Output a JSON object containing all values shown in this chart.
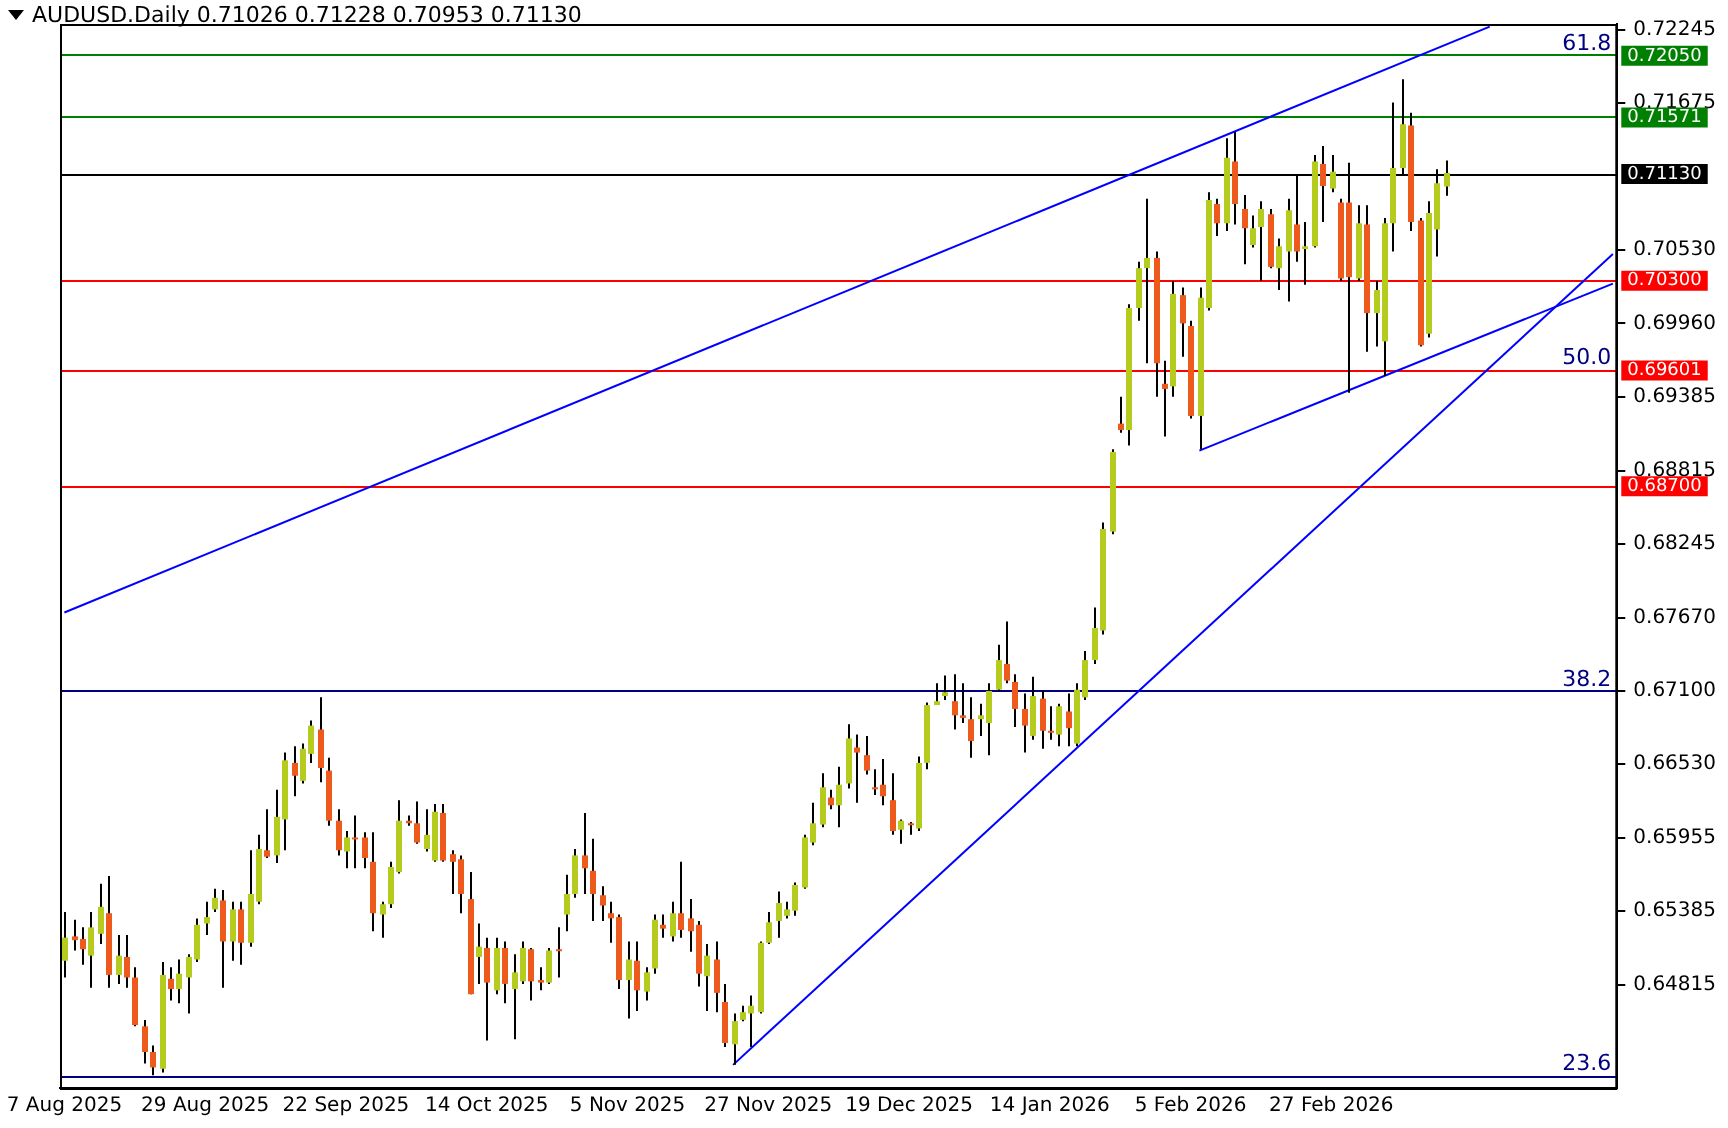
{
  "chart_data": {
    "type": "candlestick",
    "title": "AUDUSD.Daily 0.71026 0.71228 0.70953 0.71130",
    "categories": [
      "7 Aug 2025",
      null,
      null,
      null,
      null,
      null,
      null,
      null,
      null,
      null,
      null,
      null,
      null,
      null,
      null,
      null,
      "29 Aug 2025",
      null,
      null,
      null,
      null,
      null,
      null,
      null,
      null,
      null,
      null,
      null,
      null,
      null,
      null,
      null,
      "22 Sep 2025",
      null,
      null,
      null,
      null,
      null,
      null,
      null,
      null,
      null,
      null,
      null,
      null,
      null,
      null,
      null,
      "14 Oct 2025",
      null,
      null,
      null,
      null,
      null,
      null,
      null,
      null,
      null,
      null,
      null,
      null,
      null,
      null,
      null,
      "5 Nov 2025",
      null,
      null,
      null,
      null,
      null,
      null,
      null,
      null,
      null,
      null,
      null,
      null,
      null,
      null,
      null,
      "27 Nov 2025",
      null,
      null,
      null,
      null,
      null,
      null,
      null,
      null,
      null,
      null,
      null,
      null,
      null,
      null,
      null,
      "19 Dec 2025",
      null,
      null,
      null,
      null,
      null,
      null,
      null,
      null,
      null,
      null,
      null,
      null,
      null,
      null,
      null,
      "14 Jan 2026",
      null,
      null,
      null,
      null,
      null,
      null,
      null,
      null,
      null,
      null,
      null,
      null,
      null,
      null,
      null,
      "5 Feb 2026",
      null,
      null,
      null,
      null,
      null,
      null,
      null,
      null,
      null,
      null,
      null,
      null,
      null,
      null,
      null,
      "27 Feb 2026",
      null,
      null,
      null,
      null,
      null,
      null,
      null,
      null,
      null,
      null,
      null,
      null,
      null,
      null,
      null,
      null,
      null,
      null,
      null,
      null,
      null,
      null,
      null,
      null,
      null,
      null,
      null,
      null,
      null,
      null,
      null,
      null
    ],
    "ohlc": [
      [
        0.65,
        0.6538,
        0.6487,
        0.6518
      ],
      [
        0.6519,
        0.6532,
        0.6508,
        0.6516
      ],
      [
        0.6517,
        0.6526,
        0.6497,
        0.6509
      ],
      [
        0.6504,
        0.6538,
        0.6479,
        0.6526
      ],
      [
        0.6521,
        0.656,
        0.6513,
        0.6542
      ],
      [
        0.6537,
        0.6566,
        0.6479,
        0.6489
      ],
      [
        0.6489,
        0.652,
        0.6482,
        0.6504
      ],
      [
        0.6503,
        0.652,
        0.6479,
        0.6487
      ],
      [
        0.6487,
        0.6495,
        0.6449,
        0.645
      ],
      [
        0.6449,
        0.6454,
        0.642,
        0.6429
      ],
      [
        0.6429,
        0.6434,
        0.6411,
        0.6417
      ],
      [
        0.6416,
        0.6499,
        0.6413,
        0.6489
      ],
      [
        0.6486,
        0.6495,
        0.6469,
        0.6478
      ],
      [
        0.6478,
        0.6501,
        0.6467,
        0.649
      ],
      [
        0.6487,
        0.6505,
        0.6459,
        0.6503
      ],
      [
        0.6501,
        0.6533,
        0.6499,
        0.6528
      ],
      [
        0.6529,
        0.6546,
        0.652,
        0.6534
      ],
      [
        0.654,
        0.6556,
        0.6538,
        0.6549
      ],
      [
        0.6547,
        0.6555,
        0.6479,
        0.6515
      ],
      [
        0.6515,
        0.6546,
        0.65,
        0.654
      ],
      [
        0.654,
        0.6546,
        0.6497,
        0.6514
      ],
      [
        0.6514,
        0.6586,
        0.6511,
        0.6552
      ],
      [
        0.6546,
        0.6598,
        0.6544,
        0.6587
      ],
      [
        0.6586,
        0.6618,
        0.658,
        0.6581
      ],
      [
        0.6582,
        0.6633,
        0.6576,
        0.6612
      ],
      [
        0.661,
        0.6662,
        0.6586,
        0.6656
      ],
      [
        0.6654,
        0.6667,
        0.6628,
        0.6644
      ],
      [
        0.664,
        0.6669,
        0.6638,
        0.6665
      ],
      [
        0.6661,
        0.6687,
        0.6654,
        0.6683
      ],
      [
        0.668,
        0.6705,
        0.6639,
        0.665
      ],
      [
        0.6648,
        0.6658,
        0.6605,
        0.6609
      ],
      [
        0.6609,
        0.6618,
        0.6582,
        0.6586
      ],
      [
        0.6585,
        0.6601,
        0.6572,
        0.6596
      ],
      [
        0.6596,
        0.6613,
        0.6572,
        0.6595
      ],
      [
        0.6596,
        0.66,
        0.6572,
        0.658
      ],
      [
        0.6577,
        0.66,
        0.6523,
        0.6537
      ],
      [
        0.6536,
        0.6546,
        0.6518,
        0.6544
      ],
      [
        0.6544,
        0.6577,
        0.6541,
        0.6573
      ],
      [
        0.6569,
        0.6625,
        0.6568,
        0.6609
      ],
      [
        0.6609,
        0.6613,
        0.6605,
        0.6607
      ],
      [
        0.6607,
        0.6624,
        0.6591,
        0.6592
      ],
      [
        0.6587,
        0.6618,
        0.6585,
        0.6598
      ],
      [
        0.6578,
        0.6622,
        0.6577,
        0.6616
      ],
      [
        0.6615,
        0.6622,
        0.6577,
        0.6578
      ],
      [
        0.6583,
        0.6586,
        0.6552,
        0.6577
      ],
      [
        0.6579,
        0.6582,
        0.6537,
        0.6552
      ],
      [
        0.6548,
        0.6569,
        0.6474,
        0.6474
      ],
      [
        0.6503,
        0.6529,
        0.6482,
        0.6511
      ],
      [
        0.651,
        0.6518,
        0.6438,
        0.6483
      ],
      [
        0.6477,
        0.6518,
        0.6474,
        0.651
      ],
      [
        0.651,
        0.6515,
        0.6467,
        0.6482
      ],
      [
        0.6478,
        0.6505,
        0.6439,
        0.6491
      ],
      [
        0.6484,
        0.6515,
        0.6482,
        0.651
      ],
      [
        0.6509,
        0.651,
        0.6469,
        0.6484
      ],
      [
        0.6485,
        0.6495,
        0.6477,
        0.6483
      ],
      [
        0.6483,
        0.651,
        0.6482,
        0.6508
      ],
      [
        0.6509,
        0.6526,
        0.6487,
        0.6508
      ],
      [
        0.6536,
        0.6567,
        0.6523,
        0.6552
      ],
      [
        0.6552,
        0.6587,
        0.6549,
        0.6582
      ],
      [
        0.6582,
        0.6615,
        0.6552,
        0.6572
      ],
      [
        0.657,
        0.6595,
        0.6531,
        0.6552
      ],
      [
        0.6551,
        0.6558,
        0.6531,
        0.6543
      ],
      [
        0.6537,
        0.6546,
        0.6514,
        0.6533
      ],
      [
        0.6534,
        0.6536,
        0.6478,
        0.6485
      ],
      [
        0.6485,
        0.6515,
        0.6455,
        0.6501
      ],
      [
        0.65,
        0.6515,
        0.6461,
        0.6477
      ],
      [
        0.6476,
        0.6495,
        0.6469,
        0.6491
      ],
      [
        0.6494,
        0.6536,
        0.649,
        0.6532
      ],
      [
        0.6528,
        0.6536,
        0.6518,
        0.6525
      ],
      [
        0.6519,
        0.6546,
        0.6515,
        0.6537
      ],
      [
        0.6537,
        0.6577,
        0.6518,
        0.6524
      ],
      [
        0.6533,
        0.6548,
        0.6507,
        0.6523
      ],
      [
        0.6528,
        0.6531,
        0.648,
        0.649
      ],
      [
        0.6488,
        0.6513,
        0.6461,
        0.6504
      ],
      [
        0.6501,
        0.6515,
        0.646,
        0.6475
      ],
      [
        0.6468,
        0.6482,
        0.6433,
        0.6436
      ],
      [
        0.6435,
        0.6459,
        0.6419,
        0.6453
      ],
      [
        0.6454,
        0.6465,
        0.6453,
        0.646
      ],
      [
        0.6459,
        0.6473,
        0.6433,
        0.6465
      ],
      [
        0.646,
        0.6515,
        0.6459,
        0.6514
      ],
      [
        0.6514,
        0.6538,
        0.6513,
        0.653
      ],
      [
        0.6531,
        0.6554,
        0.6518,
        0.6545
      ],
      [
        0.6535,
        0.6546,
        0.6533,
        0.654
      ],
      [
        0.6539,
        0.6561,
        0.6535,
        0.6559
      ],
      [
        0.6557,
        0.6598,
        0.6556,
        0.6596
      ],
      [
        0.6592,
        0.6623,
        0.659,
        0.6607
      ],
      [
        0.6606,
        0.6646,
        0.6604,
        0.6635
      ],
      [
        0.6627,
        0.6633,
        0.6618,
        0.6621
      ],
      [
        0.6621,
        0.6651,
        0.6604,
        0.6637
      ],
      [
        0.6638,
        0.6684,
        0.6634,
        0.6673
      ],
      [
        0.6666,
        0.6676,
        0.6623,
        0.6662
      ],
      [
        0.666,
        0.6675,
        0.6645,
        0.6648
      ],
      [
        0.6635,
        0.6649,
        0.6629,
        0.6634
      ],
      [
        0.6637,
        0.6657,
        0.6621,
        0.6628
      ],
      [
        0.6625,
        0.6646,
        0.6598,
        0.6601
      ],
      [
        0.6602,
        0.661,
        0.6591,
        0.6609
      ],
      [
        0.6607,
        0.6608,
        0.6598,
        0.6606
      ],
      [
        0.6603,
        0.6659,
        0.6601,
        0.6654
      ],
      [
        0.6654,
        0.6701,
        0.6649,
        0.6699
      ],
      [
        0.6699,
        0.6716,
        0.6699,
        0.6702
      ],
      [
        0.6706,
        0.6722,
        0.6703,
        0.6709
      ],
      [
        0.6702,
        0.6723,
        0.668,
        0.6691
      ],
      [
        0.6691,
        0.6716,
        0.6685,
        0.6689
      ],
      [
        0.6688,
        0.6705,
        0.6658,
        0.6671
      ],
      [
        0.6688,
        0.67,
        0.6675,
        0.6691
      ],
      [
        0.6685,
        0.6716,
        0.666,
        0.671
      ],
      [
        0.6711,
        0.6746,
        0.671,
        0.6734
      ],
      [
        0.6731,
        0.6764,
        0.6716,
        0.6718
      ],
      [
        0.6717,
        0.6723,
        0.6682,
        0.6696
      ],
      [
        0.6696,
        0.6708,
        0.6662,
        0.6683
      ],
      [
        0.6675,
        0.6721,
        0.6672,
        0.6706
      ],
      [
        0.6704,
        0.671,
        0.6665,
        0.6679
      ],
      [
        0.6679,
        0.6698,
        0.6672,
        0.6678
      ],
      [
        0.6676,
        0.67,
        0.6667,
        0.6698
      ],
      [
        0.6694,
        0.6708,
        0.6667,
        0.6681
      ],
      [
        0.6669,
        0.6716,
        0.6667,
        0.6711
      ],
      [
        0.6705,
        0.6741,
        0.6703,
        0.6734
      ],
      [
        0.6734,
        0.6775,
        0.6731,
        0.6759
      ],
      [
        0.6757,
        0.6841,
        0.6754,
        0.6836
      ],
      [
        0.6834,
        0.6898,
        0.6832,
        0.6896
      ],
      [
        0.6918,
        0.6939,
        0.6911,
        0.6913
      ],
      [
        0.6913,
        0.7011,
        0.6901,
        0.7008
      ],
      [
        0.7008,
        0.7044,
        0.6998,
        0.7039
      ],
      [
        0.7039,
        0.7093,
        0.6965,
        0.7047
      ],
      [
        0.7047,
        0.7052,
        0.6939,
        0.6965
      ],
      [
        0.6949,
        0.6967,
        0.6908,
        0.6945
      ],
      [
        0.6947,
        0.7029,
        0.6939,
        0.7019
      ],
      [
        0.7018,
        0.7024,
        0.697,
        0.6996
      ],
      [
        0.6994,
        0.6998,
        0.6922,
        0.6924
      ],
      [
        0.6924,
        0.7024,
        0.6898,
        0.7016
      ],
      [
        0.7008,
        0.7098,
        0.7006,
        0.7092
      ],
      [
        0.7089,
        0.7093,
        0.7064,
        0.7074
      ],
      [
        0.7074,
        0.714,
        0.7068,
        0.7125
      ],
      [
        0.7122,
        0.7145,
        0.7073,
        0.7089
      ],
      [
        0.7085,
        0.7096,
        0.7042,
        0.707
      ],
      [
        0.7057,
        0.708,
        0.7055,
        0.707
      ],
      [
        0.7071,
        0.7091,
        0.7029,
        0.7085
      ],
      [
        0.7081,
        0.7085,
        0.7039,
        0.704
      ],
      [
        0.7039,
        0.7062,
        0.7022,
        0.7056
      ],
      [
        0.7052,
        0.7093,
        0.7013,
        0.7084
      ],
      [
        0.7073,
        0.7111,
        0.7044,
        0.7052
      ],
      [
        0.7054,
        0.7075,
        0.7026,
        0.7056
      ],
      [
        0.7056,
        0.7127,
        0.7055,
        0.7122
      ],
      [
        0.712,
        0.7134,
        0.7075,
        0.7103
      ],
      [
        0.7101,
        0.7127,
        0.7098,
        0.7114
      ],
      [
        0.709,
        0.7093,
        0.7029,
        0.7031
      ],
      [
        0.709,
        0.7121,
        0.6942,
        0.7032
      ],
      [
        0.7031,
        0.7088,
        0.7029,
        0.7074
      ],
      [
        0.7073,
        0.7088,
        0.6974,
        0.7004
      ],
      [
        0.7004,
        0.7029,
        0.6978,
        0.7022
      ],
      [
        0.6982,
        0.7078,
        0.6955,
        0.7074
      ],
      [
        0.7074,
        0.7168,
        0.7052,
        0.7117
      ],
      [
        0.7117,
        0.7186,
        0.7111,
        0.7151
      ],
      [
        0.715,
        0.716,
        0.7068,
        0.7075
      ],
      [
        0.7076,
        0.7078,
        0.6978,
        0.6979
      ],
      [
        0.6988,
        0.7091,
        0.6985,
        0.7082
      ],
      [
        0.7069,
        0.7116,
        0.7048,
        0.7105
      ],
      [
        0.71026,
        0.71228,
        0.70953,
        0.7113
      ],
      null,
      null,
      null,
      null,
      null,
      null,
      null,
      null,
      null,
      null,
      null,
      null,
      null,
      null,
      null,
      null,
      null,
      null,
      null
    ],
    "series": [
      {
        "type": "line",
        "color": "#0000ff",
        "values": [
          0.6771,
          null,
          null,
          null,
          null,
          null,
          null,
          null,
          null,
          null,
          null,
          null,
          null,
          null,
          null,
          null,
          null,
          null,
          null,
          null,
          null,
          null,
          null,
          null,
          null,
          null,
          null,
          null,
          null,
          null,
          null,
          null,
          null,
          null,
          null,
          null,
          null,
          null,
          null,
          null,
          null,
          null,
          null,
          null,
          null,
          null,
          null,
          null,
          null,
          null,
          null,
          null,
          null,
          null,
          null,
          null,
          null,
          null,
          null,
          null,
          null,
          null,
          null,
          null,
          null,
          null,
          null,
          null,
          null,
          null,
          null,
          null,
          null,
          null,
          null,
          null,
          null,
          null,
          null,
          null,
          null,
          null,
          null,
          null,
          null,
          null,
          null,
          null,
          null,
          null,
          null,
          null,
          null,
          null,
          null,
          null,
          null,
          null,
          null,
          null,
          null,
          null,
          null,
          null,
          null,
          null,
          null,
          null,
          null,
          null,
          null,
          null,
          null,
          null,
          null,
          null,
          null,
          null,
          null,
          null,
          null,
          null,
          null,
          null,
          null,
          null,
          null,
          null,
          null,
          null,
          null,
          null,
          null,
          null,
          null,
          null,
          null,
          null,
          null,
          null,
          null,
          null,
          null,
          null,
          null,
          null,
          null,
          null,
          null,
          null,
          null,
          null,
          null,
          null,
          null,
          null,
          null,
          null,
          null,
          null,
          null,
          null,
          0.7227,
          null,
          null,
          null,
          null,
          null,
          null,
          null,
          null,
          null,
          null,
          null,
          null,
          null,
          null
        ]
      },
      {
        "type": "line",
        "color": "#0000ff",
        "values": [
          null,
          null,
          null,
          null,
          null,
          null,
          null,
          null,
          null,
          null,
          null,
          null,
          null,
          null,
          null,
          null,
          null,
          null,
          null,
          null,
          null,
          null,
          null,
          null,
          null,
          null,
          null,
          null,
          null,
          null,
          null,
          null,
          null,
          null,
          null,
          null,
          null,
          null,
          null,
          null,
          null,
          null,
          null,
          null,
          null,
          null,
          null,
          null,
          null,
          null,
          null,
          null,
          null,
          null,
          null,
          null,
          null,
          null,
          null,
          null,
          null,
          null,
          null,
          null,
          null,
          null,
          null,
          null,
          null,
          null,
          null,
          null,
          null,
          null,
          null,
          null,
          0.6419,
          null,
          null,
          null,
          null,
          null,
          null,
          null,
          null,
          null,
          null,
          null,
          null,
          null,
          null,
          null,
          null,
          null,
          null,
          null,
          null,
          null,
          null,
          null,
          null,
          null,
          null,
          null,
          null,
          null,
          null,
          null,
          null,
          null,
          null,
          null,
          null,
          null,
          null,
          null,
          null,
          null,
          null,
          null,
          null,
          null,
          null,
          null,
          null,
          null,
          null,
          null,
          null,
          null,
          null,
          null,
          null,
          null,
          null,
          null,
          null,
          null,
          null,
          null,
          null,
          null,
          null,
          null,
          null,
          null,
          null,
          null,
          null,
          null,
          null,
          null,
          null,
          null,
          null,
          null,
          null,
          null,
          null,
          null,
          null,
          null,
          null,
          null,
          null,
          null,
          null,
          null,
          null,
          null,
          null,
          null,
          null,
          null,
          null,
          null,
          0.705
        ]
      },
      {
        "type": "line",
        "color": "#0000ff",
        "values": [
          null,
          null,
          null,
          null,
          null,
          null,
          null,
          null,
          null,
          null,
          null,
          null,
          null,
          null,
          null,
          null,
          null,
          null,
          null,
          null,
          null,
          null,
          null,
          null,
          null,
          null,
          null,
          null,
          null,
          null,
          null,
          null,
          null,
          null,
          null,
          null,
          null,
          null,
          null,
          null,
          null,
          null,
          null,
          null,
          null,
          null,
          null,
          null,
          null,
          null,
          null,
          null,
          null,
          null,
          null,
          null,
          null,
          null,
          null,
          null,
          null,
          null,
          null,
          null,
          null,
          null,
          null,
          null,
          null,
          null,
          null,
          null,
          null,
          null,
          null,
          null,
          null,
          null,
          null,
          null,
          null,
          null,
          null,
          null,
          null,
          null,
          null,
          null,
          null,
          null,
          null,
          null,
          null,
          null,
          null,
          null,
          null,
          null,
          null,
          null,
          null,
          null,
          null,
          null,
          null,
          null,
          null,
          null,
          null,
          null,
          null,
          null,
          null,
          null,
          null,
          null,
          null,
          null,
          null,
          null,
          null,
          null,
          null,
          null,
          null,
          null,
          null,
          null,
          null,
          0.6897,
          null,
          null,
          null,
          null,
          null,
          null,
          null,
          null,
          null,
          null,
          null,
          null,
          null,
          null,
          null,
          null,
          null,
          null,
          null,
          null,
          null,
          null,
          null,
          null,
          null,
          null,
          null,
          null,
          null,
          null,
          null,
          null,
          null,
          null,
          null,
          null,
          null,
          null,
          null,
          null,
          null,
          null,
          null,
          null,
          null,
          null,
          0.7027
        ]
      }
    ],
    "ylim": [
      0.6401,
      0.7229
    ],
    "yticks": [
      0.72245,
      0.71675,
      {
        "value": 0.7053,
        "label": "0.70530"
      },
      {
        "value": 0.6996,
        "label": "0.69960"
      },
      0.69385,
      0.68815,
      0.68245,
      {
        "value": 0.6767,
        "label": "0.67670"
      },
      {
        "value": 0.671,
        "label": "0.67100"
      },
      {
        "value": 0.6653,
        "label": "0.66530"
      },
      0.65955,
      0.65385,
      0.64815
    ],
    "ref_lines": [
      {
        "axis": "y",
        "value": 0.7205,
        "label": "0.72050",
        "color": "#008000"
      },
      {
        "axis": "y",
        "value": 0.71571,
        "label": "0.71571",
        "color": "#008000"
      },
      {
        "axis": "y",
        "value": 0.7113,
        "label": "0.71130",
        "color": "#000000"
      },
      {
        "axis": "y",
        "value": 0.703,
        "label": "0.70300",
        "color": "#ff0000"
      },
      {
        "axis": "y",
        "value": 0.69601,
        "label": "0.69601",
        "color": "#ff0000"
      },
      {
        "axis": "y",
        "value": 0.687,
        "label": "0.68700",
        "color": "#ff0000"
      },
      {
        "axis": "y",
        "value": 0.671,
        "color": "#000080"
      },
      {
        "axis": "y",
        "value": 0.6411,
        "color": "#000080"
      }
    ],
    "annotations": [
      {
        "text": "61.8",
        "y": 0.7205
      },
      {
        "text": "50.0",
        "y": 0.69601
      },
      {
        "text": "38.2",
        "y": 0.671
      },
      {
        "text": "23.6",
        "y": 0.6411
      }
    ],
    "grid": false,
    "legend": false
  }
}
